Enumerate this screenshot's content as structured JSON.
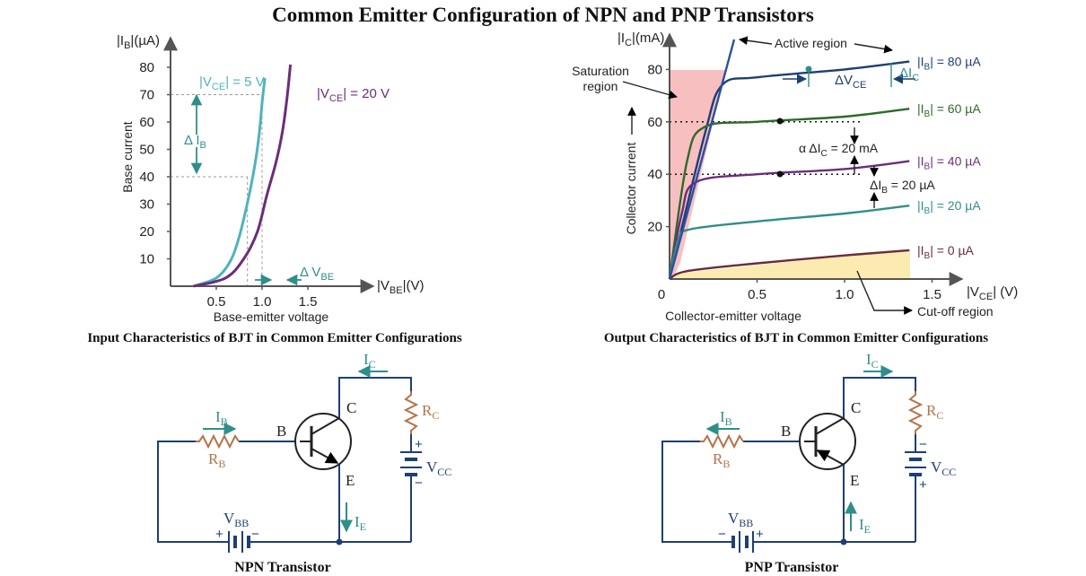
{
  "title": "Common Emitter Configuration of NPN and PNP Transistors",
  "colors": {
    "teal": "#2f8e8a",
    "light_teal": "#4fb3bd",
    "purple": "#6b2d7a",
    "navy": "#1e3f73",
    "green": "#2e6a2a",
    "maroon": "#6a2d3a",
    "axis": "#555555",
    "resistor": "#b5734a",
    "saturation_fill": "#f7b4b6",
    "cutoff_fill": "#fbe9a8",
    "wire": "#1e3f73"
  },
  "input_chart": {
    "caption": "Input Characteristics of BJT in Common Emitter Configurations",
    "y_axis_title_prefix": "|I",
    "y_axis_title_sub": "B",
    "y_axis_title_suffix": "|(µA)",
    "y_label": "Base current",
    "x_axis_title_prefix": "|V",
    "x_axis_title_sub": "BE",
    "x_axis_title_suffix": "|(V)",
    "x_label": "Base-emitter voltage",
    "y_ticks": [
      "10",
      "20",
      "30",
      "40",
      "50",
      "60",
      "70",
      "80"
    ],
    "x_ticks": [
      "0.5",
      "1.0",
      "1.5"
    ],
    "curve1_label_prefix": "|V",
    "curve1_label_sub": "CE",
    "curve1_label_suffix": "| = 5 V",
    "curve2_label_prefix": "|V",
    "curve2_label_sub": "CE",
    "curve2_label_suffix": "| = 20 V",
    "delta_ib_prefix": "Δ I",
    "delta_ib_sub": "B",
    "delta_vbe_prefix": "Δ V",
    "delta_vbe_sub": "BE"
  },
  "output_chart": {
    "caption": "Output Characteristics of BJT in Common Emitter Configurations",
    "y_axis_title_prefix": "|I",
    "y_axis_title_sub": "C",
    "y_axis_title_suffix": "|(mA)",
    "y_label": "Collector current",
    "x_axis_title_prefix": "|V",
    "x_axis_title_sub": "CE",
    "x_axis_title_suffix": "| (V)",
    "x_label": "Collector-emitter voltage",
    "origin": "0",
    "y_ticks": [
      "20",
      "40",
      "60",
      "80"
    ],
    "x_ticks": [
      "0.5",
      "1.0",
      "1.5"
    ],
    "active_region": "Active region",
    "saturation_region_line1": "Saturation",
    "saturation_region_line2": "region",
    "cutoff_region": "Cut-off region",
    "curve_label_prefix": "|I",
    "curve_label_sub": "B",
    "curve_labels": [
      "| = 80 µA",
      "| = 60 µA",
      "| = 40 µA",
      "| = 20 µA",
      "| = 0 µA"
    ],
    "delta_vce_prefix": "ΔV",
    "delta_vce_sub": "CE",
    "delta_ic_prefix": "ΔI",
    "delta_ic_sub": "C",
    "alpha_prefix": "α ΔI",
    "alpha_sub": "C",
    "alpha_suffix": " = 20 mA",
    "delta_ib_prefix": "ΔI",
    "delta_ib_sub": "B",
    "delta_ib_suffix": " = 20 µA"
  },
  "npn": {
    "caption": "NPN Transistor",
    "ic": "I",
    "ic_sub": "C",
    "ib": "I",
    "ib_sub": "B",
    "ie": "I",
    "ie_sub": "E",
    "rb": "R",
    "rb_sub": "B",
    "rc": "R",
    "rc_sub": "C",
    "vbb": "V",
    "vbb_sub": "BB",
    "vcc": "V",
    "vcc_sub": "CC",
    "b": "B",
    "c": "C",
    "e": "E",
    "plus": "+",
    "minus": "−"
  },
  "pnp": {
    "caption": "PNP Transistor",
    "ic": "I",
    "ic_sub": "C",
    "ib": "I",
    "ib_sub": "B",
    "ie": "I",
    "ie_sub": "E",
    "rb": "R",
    "rb_sub": "B",
    "rc": "R",
    "rc_sub": "C",
    "vbb": "V",
    "vbb_sub": "BB",
    "vcc": "V",
    "vcc_sub": "CC",
    "b": "B",
    "c": "C",
    "e": "E",
    "plus": "+",
    "minus": "−"
  },
  "chart_data": [
    {
      "type": "line",
      "title": "Input Characteristics of BJT in Common Emitter Configurations",
      "xlabel": "Base-emitter voltage",
      "ylabel": "Base current",
      "x_unit": "|VBE|(V)",
      "y_unit": "|IB|(µA)",
      "xlim": [
        0,
        1.7
      ],
      "ylim": [
        0,
        85
      ],
      "series": [
        {
          "name": "|VCE| = 5 V",
          "x": [
            0.25,
            0.5,
            0.65,
            0.75,
            0.85,
            0.92,
            0.97,
            1.0,
            1.03
          ],
          "y": [
            0,
            3,
            9,
            18,
            32,
            44,
            56,
            67,
            76
          ]
        },
        {
          "name": "|VCE| = 20 V",
          "x": [
            0.25,
            0.6,
            0.8,
            0.95,
            1.05,
            1.15,
            1.22,
            1.27,
            1.31
          ],
          "y": [
            0,
            3,
            10,
            20,
            33,
            45,
            56,
            68,
            81
          ]
        }
      ]
    },
    {
      "type": "line",
      "title": "Output Characteristics of BJT in Common Emitter Configurations",
      "xlabel": "Collector-emitter voltage",
      "ylabel": "Collector current",
      "x_unit": "|VCE| (V)",
      "y_unit": "|IC|(mA)",
      "xlim": [
        0,
        1.8
      ],
      "ylim": [
        0,
        90
      ],
      "series": [
        {
          "name": "|IB| = 80 µA",
          "x": [
            0,
            0.2,
            0.3,
            0.5,
            1.0,
            1.37
          ],
          "y": [
            0,
            55,
            74,
            77,
            80,
            83
          ]
        },
        {
          "name": "|IB| = 60 µA",
          "x": [
            0,
            0.1,
            0.2,
            0.5,
            1.0,
            1.37
          ],
          "y": [
            0,
            45,
            58,
            60,
            62,
            65
          ]
        },
        {
          "name": "|IB| = 40 µA",
          "x": [
            0,
            0.07,
            0.15,
            0.5,
            1.0,
            1.37
          ],
          "y": [
            0,
            25,
            37,
            40,
            42,
            45
          ]
        },
        {
          "name": "|IB| = 20 µA",
          "x": [
            0,
            0.05,
            0.12,
            0.5,
            1.0,
            1.37
          ],
          "y": [
            0,
            15,
            19,
            22,
            25,
            28
          ]
        },
        {
          "name": "|IB| = 0 µA",
          "x": [
            0,
            0.1,
            0.5,
            1.0,
            1.37
          ],
          "y": [
            0,
            3,
            6,
            9,
            11
          ]
        }
      ]
    }
  ]
}
